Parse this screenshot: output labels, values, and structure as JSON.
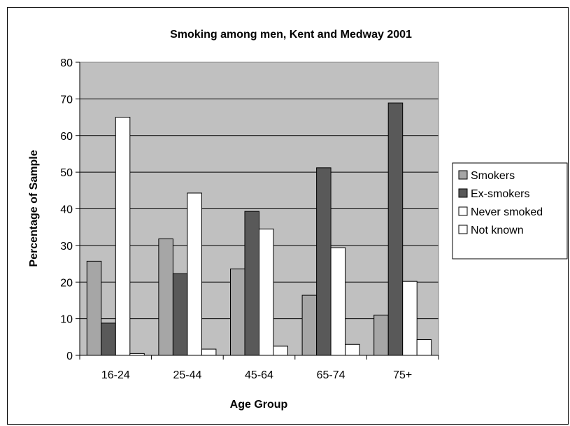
{
  "chart_data": {
    "type": "bar",
    "title": "Smoking among men, Kent and Medway 2001",
    "xlabel": "Age Group",
    "ylabel": "Percentage of Sample",
    "categories": [
      "16-24",
      "25-44",
      "45-64",
      "65-74",
      "75+"
    ],
    "ylim": [
      0,
      80
    ],
    "yticks": [
      0,
      10,
      20,
      30,
      40,
      50,
      60,
      70,
      80
    ],
    "grid": true,
    "legend_position": "right",
    "plot_background": "#c0c0c0",
    "series": [
      {
        "name": "Smokers",
        "color": "#a6a6a6",
        "values": [
          25.7,
          31.8,
          23.6,
          16.4,
          11.0
        ]
      },
      {
        "name": "Ex-smokers",
        "color": "#595959",
        "values": [
          8.8,
          22.3,
          39.3,
          51.2,
          68.9
        ]
      },
      {
        "name": "Never smoked",
        "color": "#ffffff",
        "values": [
          65.0,
          44.3,
          34.5,
          29.4,
          20.2
        ]
      },
      {
        "name": "Not known",
        "color": "#ffffff",
        "values": [
          0.5,
          1.7,
          2.5,
          3.0,
          4.3
        ]
      }
    ]
  }
}
